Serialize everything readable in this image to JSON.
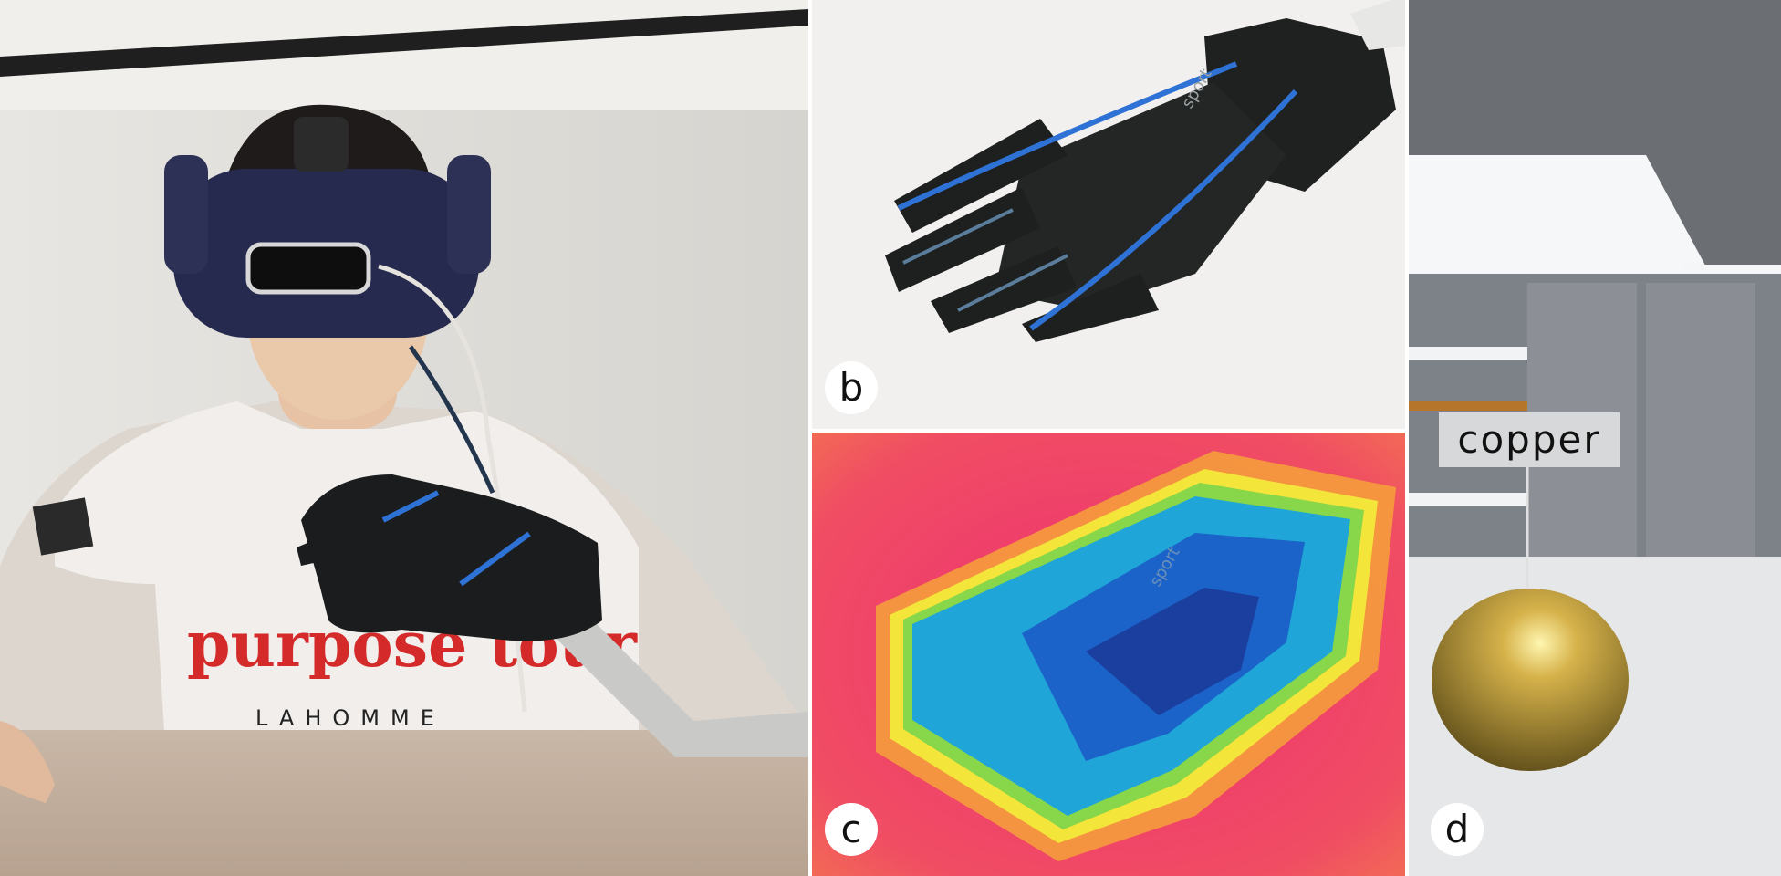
{
  "figure": {
    "panels": [
      {
        "id": "a",
        "label": ""
      },
      {
        "id": "b",
        "label": "b"
      },
      {
        "id": "c",
        "label": "c"
      },
      {
        "id": "d",
        "label": "d"
      }
    ],
    "callout": {
      "text": "copper"
    },
    "shirt_text": {
      "line1": "purpose tour",
      "line2": "LAHOMME"
    },
    "glove_text": "sport"
  },
  "colors": {
    "headset": "#24284a",
    "glove": "#1c1f1f",
    "glove_stripe": "#2f72d6",
    "heat_hot": "#ef3c6e",
    "heat_cold": "#1b63c9"
  }
}
